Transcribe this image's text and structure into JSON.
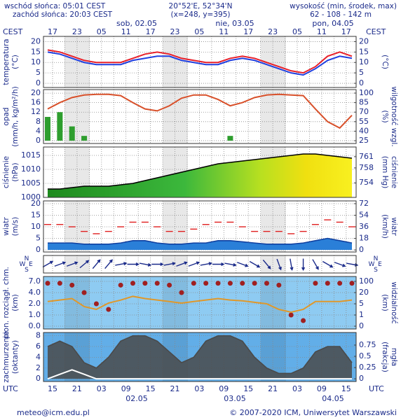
{
  "header": {
    "sunrise": "wschód słońca: 05:01 CEST",
    "sunset": "zachód słońca: 20:03 CEST",
    "coords": "20°52'E, 52°34'N",
    "grid_point": "(x=248, y=395)",
    "elevation_label": "wysokość (min, środek, max)",
    "elevation": "62 - 108 - 142 m"
  },
  "time_axis": {
    "top_zone": "CEST",
    "bottom_zone": "UTC",
    "cest_hours": [
      "17",
      "23",
      "05",
      "11",
      "17",
      "23",
      "05",
      "11",
      "17",
      "23",
      "05",
      "11",
      "17"
    ],
    "utc_hours": [
      "15",
      "21",
      "03",
      "09",
      "15",
      "21",
      "03",
      "09",
      "15",
      "21",
      "03",
      "09",
      "15"
    ],
    "top_days": [
      "sob, 02.05",
      "nie, 03.05",
      "pon, 04.05"
    ],
    "bottom_days": [
      "02.05",
      "03.05",
      "04.05"
    ]
  },
  "chart_data": [
    {
      "type": "line",
      "ylabel": "temperatura",
      "yunit": "(°C)",
      "y2unit": "(°C)",
      "ylim": [
        -2,
        22.5
      ],
      "yticks": [
        0,
        5,
        10,
        15,
        20
      ],
      "y2lim": [
        -2,
        22.5
      ],
      "y2ticks": [
        0,
        5,
        10,
        15,
        20
      ],
      "grid": true,
      "series": [
        {
          "type": "line",
          "color": "#e8202a",
          "values": [
            16,
            15,
            13,
            11,
            10,
            10,
            10,
            12,
            14,
            15,
            14,
            12,
            11,
            10,
            10,
            12,
            13,
            12,
            10,
            8,
            6,
            5,
            8,
            13,
            15,
            13
          ]
        },
        {
          "type": "line",
          "color": "#2040e0",
          "values": [
            15,
            14,
            12,
            10,
            9,
            9,
            9,
            11,
            12,
            13,
            13,
            11,
            10,
            9,
            9,
            11,
            12,
            11,
            9,
            7,
            5,
            4,
            7,
            11,
            13,
            12
          ]
        }
      ]
    },
    {
      "type": "combo",
      "ylabel": "opad",
      "yunit": "(mm/h, kg/m²/h)",
      "y2label": "wilgotność wzgl.",
      "y2unit": "(%)",
      "ylim": [
        -1.2,
        21.5
      ],
      "yticks": [
        0,
        4,
        8,
        12,
        16,
        20
      ],
      "y2lim": [
        20.6,
        105.5
      ],
      "y2ticks": [
        25,
        40,
        55,
        70,
        85,
        100
      ],
      "grid": true,
      "series": [
        {
          "type": "bar",
          "color": "#2e9e2e",
          "values": [
            10,
            12,
            6,
            2,
            0,
            0,
            0,
            0,
            0,
            0,
            0,
            0,
            0,
            0,
            0,
            2,
            0,
            0,
            0,
            0,
            0,
            0,
            0,
            0,
            0,
            0
          ]
        },
        {
          "type": "line",
          "axis": "y2",
          "color": "#d8502a",
          "values": [
            75,
            85,
            93,
            97,
            98,
            98,
            96,
            85,
            75,
            72,
            80,
            92,
            97,
            97,
            90,
            80,
            85,
            93,
            97,
            98,
            97,
            96,
            75,
            55,
            45,
            65
          ]
        }
      ]
    },
    {
      "type": "area",
      "ylabel": "ciśnienie",
      "yunit": "(hPa)",
      "y2label": "ciśnienie",
      "y2unit": "(mm Hg)",
      "ylim": [
        1000,
        1018
      ],
      "yticks": [
        1000,
        1005,
        1010,
        1015
      ],
      "y2lim": [
        750.1,
        763.6
      ],
      "y2ticks": [
        754,
        758,
        761
      ],
      "grid": true,
      "series": [
        {
          "type": "area",
          "color": "#000000",
          "values": [
            1003,
            1003,
            1003.5,
            1004,
            1004,
            1004,
            1004.5,
            1005,
            1006,
            1007,
            1008,
            1009,
            1010,
            1011,
            1012,
            1012.5,
            1013,
            1013.5,
            1014,
            1014.5,
            1015,
            1015.5,
            1015.5,
            1015,
            1014.5,
            1014
          ]
        }
      ]
    },
    {
      "type": "combo",
      "ylabel": "wiatr",
      "yunit": "(m/s)",
      "y2label": "wiatr",
      "y2unit": "(km/h)",
      "ylim": [
        -0.9,
        21.2
      ],
      "yticks": [
        0,
        5,
        10,
        15,
        20
      ],
      "y2lim": [
        -3.2,
        76.3
      ],
      "y2ticks": [
        0,
        18,
        36,
        54,
        72
      ],
      "grid": true,
      "series": [
        {
          "type": "area",
          "color": "#1040a0",
          "values": [
            3,
            3,
            3,
            2.5,
            2.5,
            2.5,
            3,
            4,
            4,
            3,
            2.5,
            2.5,
            3,
            3,
            4,
            4,
            3.5,
            3,
            2.5,
            2.5,
            2.5,
            3,
            4,
            5,
            4,
            3
          ]
        },
        {
          "type": "dash",
          "color": "#e02020",
          "values": [
            11,
            11,
            10,
            8,
            7,
            8,
            10,
            12,
            12,
            10,
            8,
            8,
            9,
            11,
            12,
            12,
            10,
            8,
            8,
            8,
            7,
            8,
            11,
            13,
            12,
            10
          ]
        }
      ]
    },
    {
      "type": "arrows",
      "compass": [
        "N",
        "W",
        "E",
        "S"
      ],
      "color": "#1a2a8a",
      "values": [
        240,
        250,
        250,
        230,
        220,
        220,
        260,
        270,
        280,
        270,
        260,
        250,
        250,
        260,
        270,
        280,
        290,
        300,
        320,
        340,
        350,
        0,
        330,
        300,
        290,
        280
      ]
    },
    {
      "type": "combo",
      "ylabel": "pion. rozciągł. chm.",
      "yunit": "(km)",
      "y2label": "widzialność",
      "y2unit": "(km)",
      "yscale": "piecewise",
      "ylim": [
        0,
        7
      ],
      "yticks": [
        {
          "value": 0,
          "label": "0.0"
        },
        {
          "value": 1,
          "label": "1.0"
        },
        {
          "value": 2,
          "label": "2.0"
        },
        {
          "value": 4,
          "label": "4.0"
        },
        {
          "value": 7,
          "label": "7.0"
        }
      ],
      "y2lim": [
        0,
        100
      ],
      "y2ticks": [
        0,
        1,
        5,
        20,
        100
      ],
      "grid": true,
      "series": [
        {
          "type": "dots",
          "color": "#a02020",
          "values": [
            6.5,
            6.5,
            6,
            4,
            2,
            1.5,
            6,
            6.5,
            6.5,
            6.5,
            6,
            4,
            6.5,
            6.5,
            6.5,
            6.5,
            6.5,
            6.5,
            6.5,
            6,
            1,
            0.5,
            6.5,
            6.5,
            6.5,
            6.5
          ]
        },
        {
          "type": "line",
          "axis": "y2",
          "color": "#e0982a",
          "values": [
            8,
            10,
            12,
            4,
            3,
            6,
            10,
            15,
            12,
            10,
            8,
            6,
            8,
            10,
            12,
            10,
            9,
            7,
            5,
            3,
            2,
            3,
            8,
            8,
            8,
            10
          ]
        }
      ]
    },
    {
      "type": "combo",
      "ylabel": "zachmurzenie",
      "yunit": "(oktanty)",
      "y2label": "mgła",
      "y2unit": "(frakcja)",
      "ylim": [
        -0.5,
        8.6
      ],
      "yticks": [
        0,
        2,
        4,
        6,
        8
      ],
      "y2lim": [
        -0.06,
        1.03
      ],
      "y2ticks": [
        0,
        0.25,
        0.5,
        0.75
      ],
      "grid": true,
      "series": [
        {
          "type": "area",
          "color": "#4a4a4a",
          "values": [
            6,
            7,
            6,
            3,
            2,
            4,
            7,
            8,
            8,
            7,
            5,
            3,
            4,
            7,
            8,
            8,
            7,
            4,
            2,
            1,
            1,
            2,
            5,
            6,
            6,
            3
          ]
        },
        {
          "type": "line",
          "axis": "y2",
          "color": "#ffffff",
          "values": [
            0,
            0.1,
            0.2,
            0.1,
            0,
            0,
            0,
            0,
            0,
            0,
            0,
            0,
            0,
            0,
            0,
            0,
            0,
            0,
            0,
            0,
            0,
            0,
            0,
            0,
            0,
            0
          ]
        }
      ]
    }
  ],
  "footer": {
    "email": "meteo@icm.edu.pl",
    "copyright": "© 2007-2020 ICM, Uniwersytet Warszawski"
  }
}
